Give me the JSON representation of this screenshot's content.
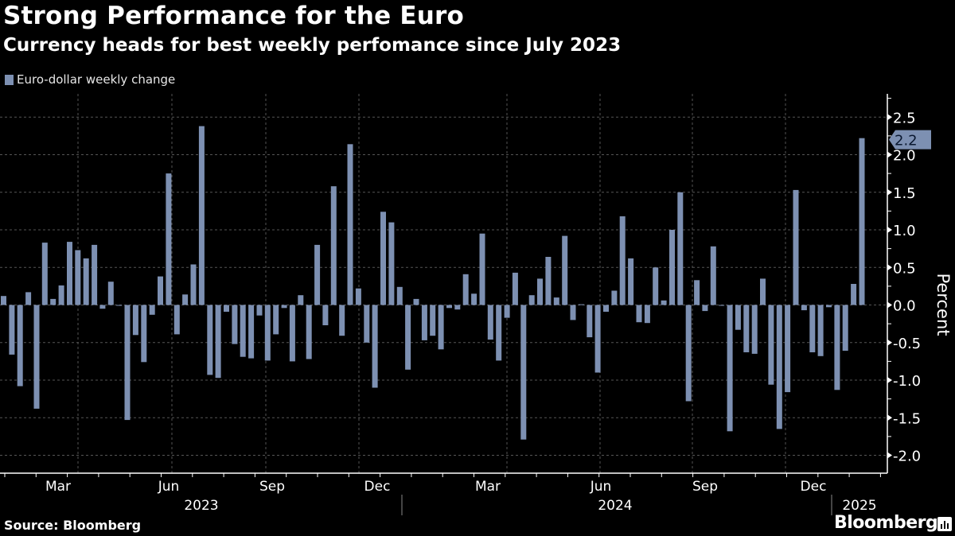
{
  "header": {
    "title": "Strong Performance for the Euro",
    "subtitle": "Currency heads for best weekly perfomance since July 2023"
  },
  "footer": {
    "source": "Source: Bloomberg",
    "brand": "Bloomberg"
  },
  "colors": {
    "bar": "#7d90b2",
    "background": "#000000",
    "grid": "#555555"
  },
  "chart_data": {
    "type": "bar",
    "title": "Strong Performance for the Euro",
    "subtitle": "Currency heads for best weekly perfomance since July 2023",
    "legend": [
      "Euro-dollar weekly change"
    ],
    "legend_position": "top-left",
    "ylabel": "Percent",
    "ylim": [
      -2.2,
      2.8
    ],
    "yticks": [
      2.5,
      2.0,
      1.5,
      1.0,
      0.5,
      0.0,
      -0.5,
      -1.0,
      -1.5,
      -2.0
    ],
    "ytick_labels": [
      "2.5",
      "2.0",
      "1.5",
      "1.0",
      "0.5",
      "0.0",
      "-0.5",
      "-1.0",
      "-1.5",
      "-2.0"
    ],
    "grid": true,
    "last_value_label": "2.2",
    "x_month_labels": [
      "Mar",
      "Jun",
      "Sep",
      "Dec",
      "Mar",
      "Jun",
      "Sep",
      "Dec"
    ],
    "x_year_labels": [
      "2023",
      "2024",
      "2025"
    ],
    "values": [
      0.12,
      -0.66,
      -1.08,
      0.17,
      -1.38,
      0.83,
      0.08,
      0.26,
      0.84,
      0.73,
      0.62,
      0.8,
      -0.05,
      0.31,
      -0.01,
      -1.53,
      -0.4,
      -0.76,
      -0.13,
      0.38,
      1.75,
      -0.39,
      0.14,
      0.54,
      2.38,
      -0.93,
      -0.97,
      -0.09,
      -0.52,
      -0.69,
      -0.71,
      -0.14,
      -0.74,
      -0.39,
      -0.04,
      -0.75,
      0.13,
      -0.72,
      0.8,
      -0.27,
      1.58,
      -0.41,
      2.14,
      0.22,
      -0.5,
      -1.1,
      1.24,
      1.1,
      0.24,
      -0.86,
      0.08,
      -0.47,
      -0.41,
      -0.59,
      -0.04,
      -0.06,
      0.41,
      0.15,
      0.95,
      -0.46,
      -0.74,
      -0.17,
      0.43,
      -1.79,
      0.13,
      0.35,
      0.64,
      0.1,
      0.92,
      -0.2,
      0.01,
      -0.43,
      -0.9,
      -0.09,
      0.19,
      1.18,
      0.62,
      -0.23,
      -0.24,
      0.5,
      0.06,
      1.0,
      1.5,
      -1.28,
      0.33,
      -0.08,
      0.78,
      -0.01,
      -1.68,
      -0.33,
      -0.63,
      -0.65,
      0.35,
      -1.06,
      -1.65,
      -1.16,
      1.53,
      -0.07,
      -0.63,
      -0.68,
      -0.03,
      -1.13,
      -0.61,
      0.28,
      2.22
    ]
  }
}
